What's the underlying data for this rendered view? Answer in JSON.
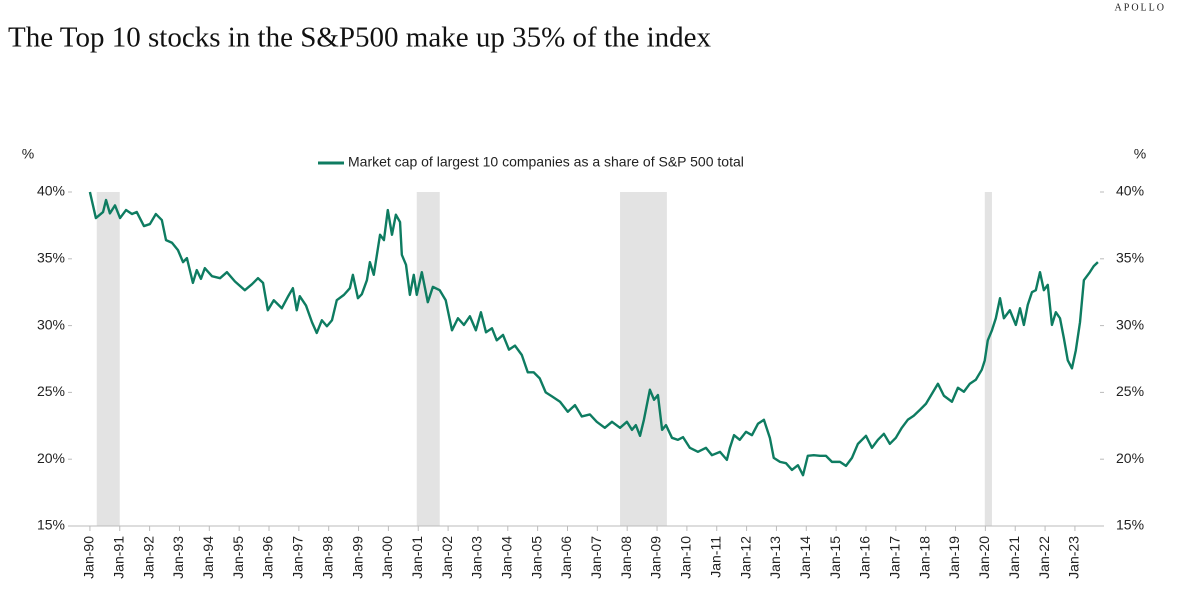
{
  "brand": "APOLLO",
  "chart_data": {
    "type": "line",
    "title": "The Top 10 stocks in the S&P500 make up 35% of the index",
    "y_label": "%",
    "y2_label": "%",
    "x": [
      1990.0,
      1990.2,
      1990.44,
      1990.54,
      1990.67,
      1990.84,
      1991.01,
      1991.21,
      1991.41,
      1991.57,
      1991.81,
      1992.01,
      1992.21,
      1992.41,
      1992.55,
      1992.75,
      1992.95,
      1993.12,
      1993.25,
      1993.45,
      1993.58,
      1993.72,
      1993.85,
      1994.09,
      1994.36,
      1994.59,
      1994.86,
      1995.19,
      1995.43,
      1995.63,
      1995.8,
      1995.96,
      1996.16,
      1996.43,
      1996.63,
      1996.8,
      1996.93,
      1997.03,
      1997.24,
      1997.44,
      1997.6,
      1997.77,
      1997.94,
      1998.11,
      1998.27,
      1998.51,
      1998.71,
      1998.81,
      1998.98,
      1999.11,
      1999.28,
      1999.38,
      1999.51,
      1999.72,
      1999.85,
      1999.98,
      2000.12,
      2000.25,
      2000.39,
      2000.45,
      2000.59,
      2000.72,
      2000.85,
      2000.95,
      2001.12,
      2001.32,
      2001.49,
      2001.72,
      2001.92,
      2002.13,
      2002.33,
      2002.53,
      2002.73,
      2002.93,
      2003.1,
      2003.27,
      2003.47,
      2003.63,
      2003.84,
      2004.04,
      2004.24,
      2004.47,
      2004.67,
      2004.87,
      2005.07,
      2005.27,
      2005.48,
      2005.75,
      2006.01,
      2006.25,
      2006.48,
      2006.75,
      2006.98,
      2007.25,
      2007.49,
      2007.76,
      2007.99,
      2008.16,
      2008.29,
      2008.43,
      2008.56,
      2008.76,
      2008.9,
      2009.03,
      2009.17,
      2009.3,
      2009.5,
      2009.7,
      2009.87,
      2010.1,
      2010.37,
      2010.64,
      2010.84,
      2011.11,
      2011.34,
      2011.44,
      2011.58,
      2011.77,
      2011.98,
      2012.18,
      2012.38,
      2012.58,
      2012.78,
      2012.91,
      2013.12,
      2013.32,
      2013.52,
      2013.72,
      2013.89,
      2014.05,
      2014.25,
      2014.46,
      2014.66,
      2014.86,
      2015.13,
      2015.33,
      2015.53,
      2015.73,
      2016.0,
      2016.2,
      2016.4,
      2016.6,
      2016.8,
      2017.0,
      2017.2,
      2017.4,
      2017.6,
      2017.81,
      2018.01,
      2018.21,
      2018.41,
      2018.61,
      2018.88,
      2019.08,
      2019.28,
      2019.48,
      2019.68,
      2019.88,
      2019.98,
      2020.08,
      2020.22,
      2020.35,
      2020.49,
      2020.62,
      2020.82,
      2021.02,
      2021.16,
      2021.29,
      2021.42,
      2021.56,
      2021.69,
      2021.83,
      2021.96,
      2022.09,
      2022.23,
      2022.36,
      2022.5,
      2022.63,
      2022.76,
      2022.9,
      2023.03,
      2023.17,
      2023.3,
      2023.5,
      2023.63,
      2023.77
    ],
    "series": [
      {
        "name": "Market cap of largest 10 companies as a share of S&P 500 total",
        "color": "#0e7c61",
        "values": [
          40.0,
          38.05,
          38.5,
          39.4,
          38.4,
          39.0,
          38.05,
          38.65,
          38.35,
          38.5,
          37.45,
          37.6,
          38.35,
          37.9,
          36.4,
          36.2,
          35.65,
          34.75,
          35.05,
          33.2,
          34.15,
          33.5,
          34.3,
          33.7,
          33.55,
          34.0,
          33.3,
          32.65,
          33.1,
          33.55,
          33.2,
          31.15,
          31.9,
          31.3,
          32.15,
          32.8,
          31.15,
          32.2,
          31.5,
          30.25,
          29.45,
          30.4,
          29.95,
          30.4,
          31.9,
          32.3,
          32.8,
          33.8,
          32.05,
          32.35,
          33.4,
          34.75,
          33.8,
          36.8,
          36.4,
          38.65,
          36.8,
          38.3,
          37.75,
          35.3,
          34.55,
          32.3,
          33.8,
          32.3,
          34.0,
          31.75,
          32.9,
          32.65,
          31.9,
          29.65,
          30.55,
          30.05,
          30.7,
          29.65,
          31.0,
          29.5,
          29.8,
          28.9,
          29.3,
          28.2,
          28.5,
          27.8,
          26.5,
          26.5,
          26.05,
          25.0,
          24.7,
          24.3,
          23.55,
          24.05,
          23.2,
          23.35,
          22.8,
          22.35,
          22.8,
          22.35,
          22.8,
          22.2,
          22.55,
          21.75,
          22.95,
          25.2,
          24.45,
          24.8,
          22.2,
          22.55,
          21.6,
          21.45,
          21.65,
          20.85,
          20.55,
          20.85,
          20.3,
          20.55,
          19.95,
          20.85,
          21.8,
          21.45,
          22.05,
          21.8,
          22.65,
          22.95,
          21.6,
          20.1,
          19.8,
          19.7,
          19.2,
          19.55,
          18.8,
          20.25,
          20.3,
          20.25,
          20.25,
          19.8,
          19.8,
          19.5,
          20.1,
          21.15,
          21.75,
          20.85,
          21.45,
          21.9,
          21.15,
          21.6,
          22.35,
          22.95,
          23.25,
          23.7,
          24.15,
          24.9,
          25.65,
          24.75,
          24.3,
          25.35,
          25.05,
          25.65,
          25.95,
          26.7,
          27.4,
          28.9,
          29.65,
          30.55,
          32.05,
          30.55,
          31.15,
          30.05,
          31.3,
          30.05,
          31.55,
          32.5,
          32.65,
          34.0,
          32.65,
          33.05,
          30.05,
          31.0,
          30.55,
          29.05,
          27.4,
          26.8,
          28.15,
          30.25,
          33.4,
          34.0,
          34.45,
          34.75
        ]
      }
    ],
    "shaded_periods": [
      [
        1990.23,
        1991.0
      ],
      [
        2000.95,
        2001.72
      ],
      [
        2007.76,
        2009.33
      ],
      [
        2019.98,
        2020.22
      ]
    ],
    "shade_color": "#e3e3e3",
    "xlim": [
      1989.4,
      2023.84
    ],
    "xticks": [
      {
        "value": 1990,
        "label": "Jan-90"
      },
      {
        "value": 1991,
        "label": "Jan-91"
      },
      {
        "value": 1992,
        "label": "Jan-92"
      },
      {
        "value": 1993,
        "label": "Jan-93"
      },
      {
        "value": 1994,
        "label": "Jan-94"
      },
      {
        "value": 1995,
        "label": "Jan-95"
      },
      {
        "value": 1996,
        "label": "Jan-96"
      },
      {
        "value": 1997,
        "label": "Jan-97"
      },
      {
        "value": 1998,
        "label": "Jan-98"
      },
      {
        "value": 1999,
        "label": "Jan-99"
      },
      {
        "value": 2000,
        "label": "Jan-00"
      },
      {
        "value": 2001,
        "label": "Jan-01"
      },
      {
        "value": 2002,
        "label": "Jan-02"
      },
      {
        "value": 2003,
        "label": "Jan-03"
      },
      {
        "value": 2004,
        "label": "Jan-04"
      },
      {
        "value": 2005,
        "label": "Jan-05"
      },
      {
        "value": 2006,
        "label": "Jan-06"
      },
      {
        "value": 2007,
        "label": "Jan-07"
      },
      {
        "value": 2008,
        "label": "Jan-08"
      },
      {
        "value": 2009,
        "label": "Jan-09"
      },
      {
        "value": 2010,
        "label": "Jan-10"
      },
      {
        "value": 2011,
        "label": "Jan-11"
      },
      {
        "value": 2012,
        "label": "Jan-12"
      },
      {
        "value": 2013,
        "label": "Jan-13"
      },
      {
        "value": 2014,
        "label": "Jan-14"
      },
      {
        "value": 2015,
        "label": "Jan-15"
      },
      {
        "value": 2016,
        "label": "Jan-16"
      },
      {
        "value": 2017,
        "label": "Jan-17"
      },
      {
        "value": 2018,
        "label": "Jan-18"
      },
      {
        "value": 2019,
        "label": "Jan-19"
      },
      {
        "value": 2020,
        "label": "Jan-20"
      },
      {
        "value": 2021,
        "label": "Jan-21"
      },
      {
        "value": 2022,
        "label": "Jan-22"
      },
      {
        "value": 2023,
        "label": "Jan-23"
      }
    ],
    "ylim": [
      15,
      40
    ],
    "yticks": [
      {
        "value": 15,
        "label": "15%"
      },
      {
        "value": 20,
        "label": "20%"
      },
      {
        "value": 25,
        "label": "25%"
      },
      {
        "value": 30,
        "label": "30%"
      },
      {
        "value": 35,
        "label": "35%"
      },
      {
        "value": 40,
        "label": "40%"
      }
    ],
    "y2lim": [
      15,
      40
    ],
    "y2ticks": [
      {
        "value": 15,
        "label": "15%"
      },
      {
        "value": 20,
        "label": "20%"
      },
      {
        "value": 25,
        "label": "25%"
      },
      {
        "value": 30,
        "label": "30%"
      },
      {
        "value": 35,
        "label": "35%"
      },
      {
        "value": 40,
        "label": "40%"
      }
    ],
    "legend": "top"
  }
}
